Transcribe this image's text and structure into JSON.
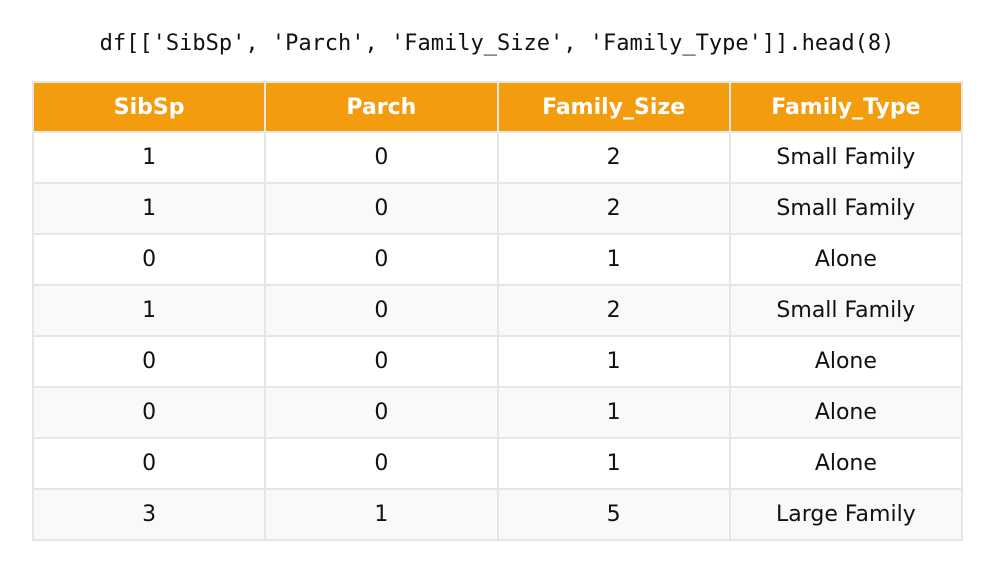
{
  "caption": "df[['SibSp', 'Parch', 'Family_Size', 'Family_Type']].head(8)",
  "table": {
    "header": [
      "SibSp",
      "Parch",
      "Family_Size",
      "Family_Type"
    ],
    "rows": [
      [
        1,
        0,
        2,
        "Small Family"
      ],
      [
        1,
        0,
        2,
        "Small Family"
      ],
      [
        0,
        0,
        1,
        "Alone"
      ],
      [
        1,
        0,
        2,
        "Small Family"
      ],
      [
        0,
        0,
        1,
        "Alone"
      ],
      [
        0,
        0,
        1,
        "Alone"
      ],
      [
        0,
        0,
        1,
        "Alone"
      ],
      [
        3,
        1,
        5,
        "Large Family"
      ]
    ]
  }
}
